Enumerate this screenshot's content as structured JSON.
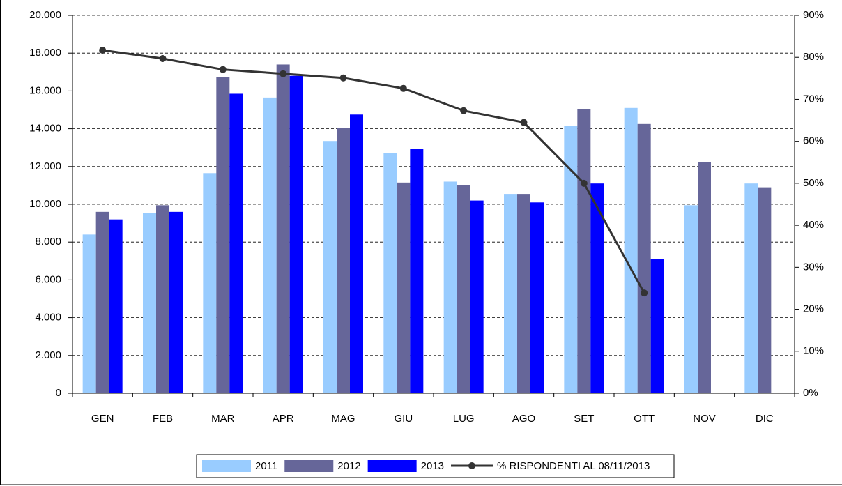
{
  "chart_data": {
    "type": "bar",
    "categories": [
      "GEN",
      "FEB",
      "MAR",
      "APR",
      "MAG",
      "GIU",
      "LUG",
      "AGO",
      "SET",
      "OTT",
      "NOV",
      "DIC"
    ],
    "series": [
      {
        "name": "2011",
        "color": "#99ccff",
        "values": [
          8400,
          9550,
          11650,
          15650,
          13350,
          12700,
          11200,
          10550,
          14150,
          15100,
          9950,
          11100
        ]
      },
      {
        "name": "2012",
        "color": "#666699",
        "values": [
          9600,
          9950,
          16750,
          17400,
          14050,
          11150,
          11000,
          10550,
          15050,
          14250,
          12250,
          10900
        ]
      },
      {
        "name": "2013",
        "color": "#0000ff",
        "values": [
          9200,
          9600,
          15850,
          16800,
          14750,
          12950,
          10200,
          10100,
          11100,
          7100,
          null,
          null
        ]
      },
      {
        "name": "% RISPONDENTI AL 08/11/2013",
        "color": "#333333",
        "type": "line",
        "axis": "y2",
        "values": [
          81.7,
          79.7,
          77.1,
          76.1,
          75.1,
          72.6,
          67.3,
          64.5,
          50,
          23.9,
          null,
          null
        ]
      }
    ],
    "ylim": [
      0,
      20000
    ],
    "yticks": [
      0,
      {
        "value": 2000,
        "label": "2.000"
      },
      {
        "value": 4000,
        "label": "4.000"
      },
      {
        "value": 6000,
        "label": "6.000"
      },
      {
        "value": 8000,
        "label": "8.000"
      },
      {
        "value": 10000,
        "label": "10.000"
      },
      {
        "value": 12000,
        "label": "12.000"
      },
      {
        "value": 14000,
        "label": "14.000"
      },
      {
        "value": 16000,
        "label": "16.000"
      },
      {
        "value": 18000,
        "label": "18.000"
      },
      {
        "value": 20000,
        "label": "20.000"
      }
    ],
    "y2lim": [
      0,
      90
    ],
    "y2ticks": [
      {
        "value": 0,
        "label": "0%"
      },
      {
        "value": 10,
        "label": "10%"
      },
      {
        "value": 20,
        "label": "20%"
      },
      {
        "value": 30,
        "label": "30%"
      },
      {
        "value": 40,
        "label": "40%"
      },
      {
        "value": 50,
        "label": "50%"
      },
      {
        "value": 60,
        "label": "60%"
      },
      {
        "value": 70,
        "label": "70%"
      },
      {
        "value": 80,
        "label": "80%"
      },
      {
        "value": 90,
        "label": "90%"
      }
    ],
    "grid": true,
    "legend": "bottom"
  }
}
